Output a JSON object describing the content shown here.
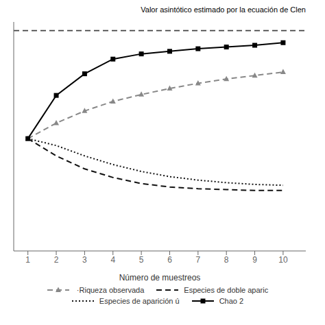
{
  "chart_data": {
    "type": "line",
    "x": [
      1,
      2,
      3,
      4,
      5,
      6,
      7,
      8,
      9,
      10
    ],
    "xlim": [
      0.5,
      10.8
    ],
    "xticks": [
      1,
      2,
      3,
      4,
      5,
      6,
      7,
      8,
      9,
      10
    ],
    "ylim": [
      -80,
      185
    ],
    "xlabel": "Número de muestreos",
    "tick_labels": "x",
    "legend": "bottom",
    "series": [
      {
        "name": " ·Riqueza observada",
        "color": "#888888",
        "line_style": "dashed",
        "marker": "triangle",
        "values": [
          50,
          68,
          82,
          93,
          101,
          108,
          114,
          119,
          123,
          127
        ]
      },
      {
        "name": "Especies de doble aparic",
        "color": "#111111",
        "line_style": "dashed",
        "values": [
          50,
          30,
          15,
          5,
          -2,
          -6,
          -8,
          -9,
          -10,
          -10
        ]
      },
      {
        "name": "Especies de aparición ú",
        "color": "#111111",
        "line_style": "dotted",
        "values": [
          50,
          42,
          30,
          20,
          12,
          6,
          2,
          -1,
          -3,
          -4
        ]
      },
      {
        "name": "Chao 2",
        "color": "#000000",
        "line_style": "solid",
        "marker": "square",
        "values": [
          50,
          100,
          125,
          142,
          148,
          151,
          154,
          156,
          158,
          161
        ]
      }
    ],
    "reference_lines": [
      {
        "y": 175,
        "color": "#444444",
        "line_style": "dashed"
      }
    ],
    "annotations": [
      {
        "text": "Valor asintótico estimado por la ecuación de Clen"
      }
    ]
  }
}
